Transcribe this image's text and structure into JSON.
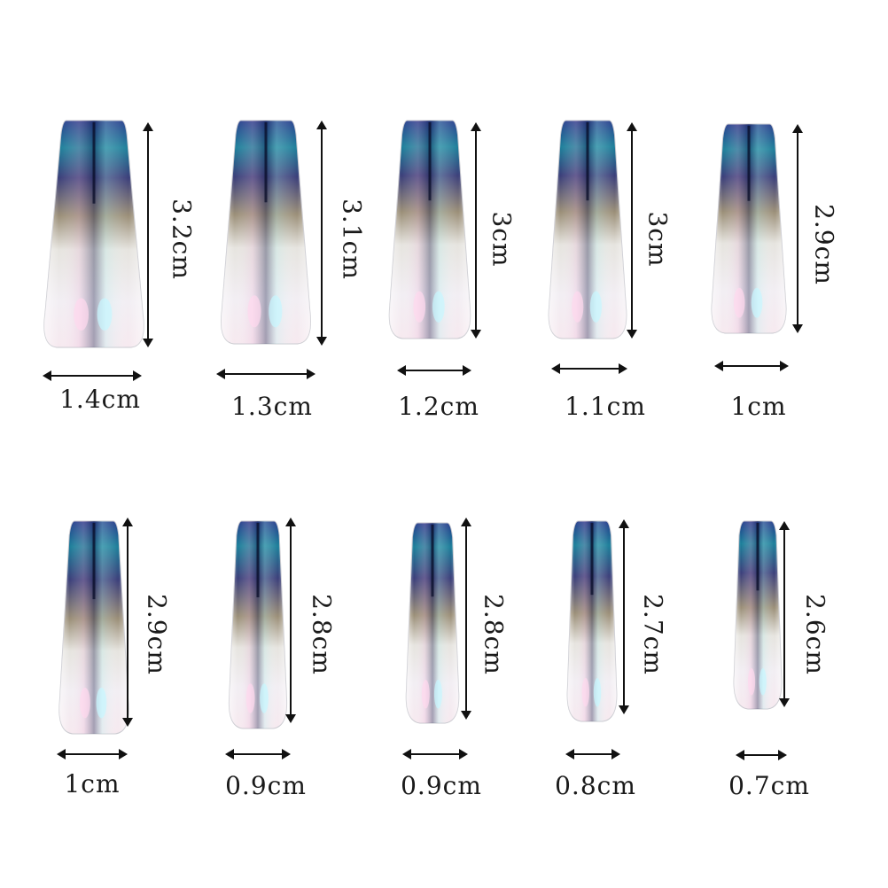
{
  "colors": {
    "background": "#ffffff",
    "ink": "#111111",
    "tip_dark": "#1f2a6e",
    "tip_teal": "#1d8aa0"
  },
  "rows": [
    {
      "nails": [
        {
          "length": "3.2cm",
          "width": "1.4cm"
        },
        {
          "length": "3.1cm",
          "width": "1.3cm"
        },
        {
          "length": "3cm",
          "width": "1.2cm"
        },
        {
          "length": "3cm",
          "width": "1.1cm"
        },
        {
          "length": "2.9cm",
          "width": "1cm"
        }
      ]
    },
    {
      "nails": [
        {
          "length": "2.9cm",
          "width": "1cm"
        },
        {
          "length": "2.8cm",
          "width": "0.9cm"
        },
        {
          "length": "2.8cm",
          "width": "0.9cm"
        },
        {
          "length": "2.7cm",
          "width": "0.8cm"
        },
        {
          "length": "2.6cm",
          "width": "0.7cm"
        }
      ]
    }
  ]
}
